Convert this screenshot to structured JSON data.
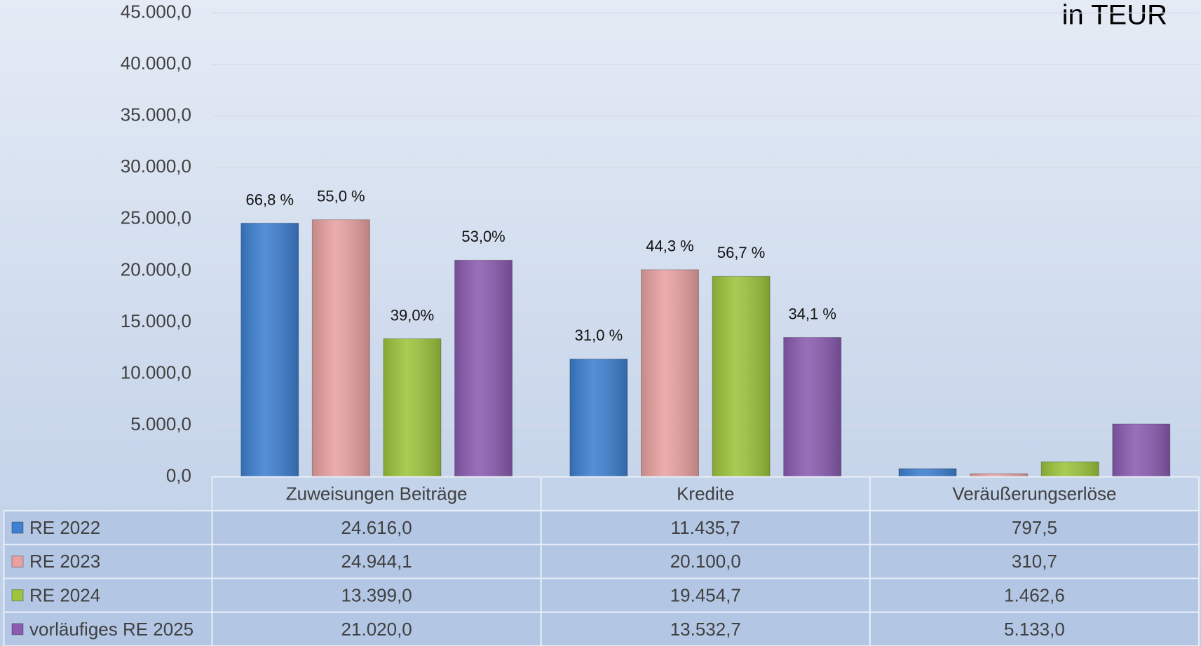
{
  "chart_data": {
    "type": "bar",
    "annotation": "in TEUR",
    "categories": [
      "Zuweisungen Beiträge",
      "Kredite",
      "Veräußerungserlöse"
    ],
    "series": [
      {
        "name": "RE 2022",
        "color": "#3d7fd0",
        "values": [
          24616.0,
          11435.7,
          797.5
        ],
        "value_labels": [
          "24.616,0",
          "11.435,7",
          "797,5"
        ],
        "share_labels": [
          "66,8 %",
          "31,0 %",
          null
        ]
      },
      {
        "name": "RE 2023",
        "color": "#e8a1a0",
        "values": [
          24944.1,
          20100.0,
          310.7
        ],
        "value_labels": [
          "24.944,1",
          "20.100,0",
          "310,7"
        ],
        "share_labels": [
          "55,0 %",
          "44,3 %",
          null
        ]
      },
      {
        "name": "RE 2024",
        "color": "#9dc43c",
        "values": [
          13399.0,
          19454.7,
          1462.6
        ],
        "value_labels": [
          "13.399,0",
          "19.454,7",
          "1.462,6"
        ],
        "share_labels": [
          "39,0%",
          "56,7 %",
          null
        ]
      },
      {
        "name": "vorläufiges RE 2025",
        "color": "#8a5bb0",
        "values": [
          21020.0,
          13532.7,
          5133.0
        ],
        "value_labels": [
          "21.020,0",
          "13.532,7",
          "5.133,0"
        ],
        "share_labels": [
          "53,0%",
          "34,1 %",
          null
        ]
      }
    ],
    "ylim": [
      0,
      45000
    ],
    "yticks": [
      {
        "value": 0,
        "label": "0,0"
      },
      {
        "value": 5000,
        "label": "5.000,0"
      },
      {
        "value": 10000,
        "label": "10.000,0"
      },
      {
        "value": 15000,
        "label": "15.000,0"
      },
      {
        "value": 20000,
        "label": "20.000,0"
      },
      {
        "value": 25000,
        "label": "25.000,0"
      },
      {
        "value": 30000,
        "label": "30.000,0"
      },
      {
        "value": 35000,
        "label": "35.000,0"
      },
      {
        "value": 40000,
        "label": "40.000,0"
      },
      {
        "value": 45000,
        "label": "45.000,0"
      }
    ],
    "grid": true
  }
}
